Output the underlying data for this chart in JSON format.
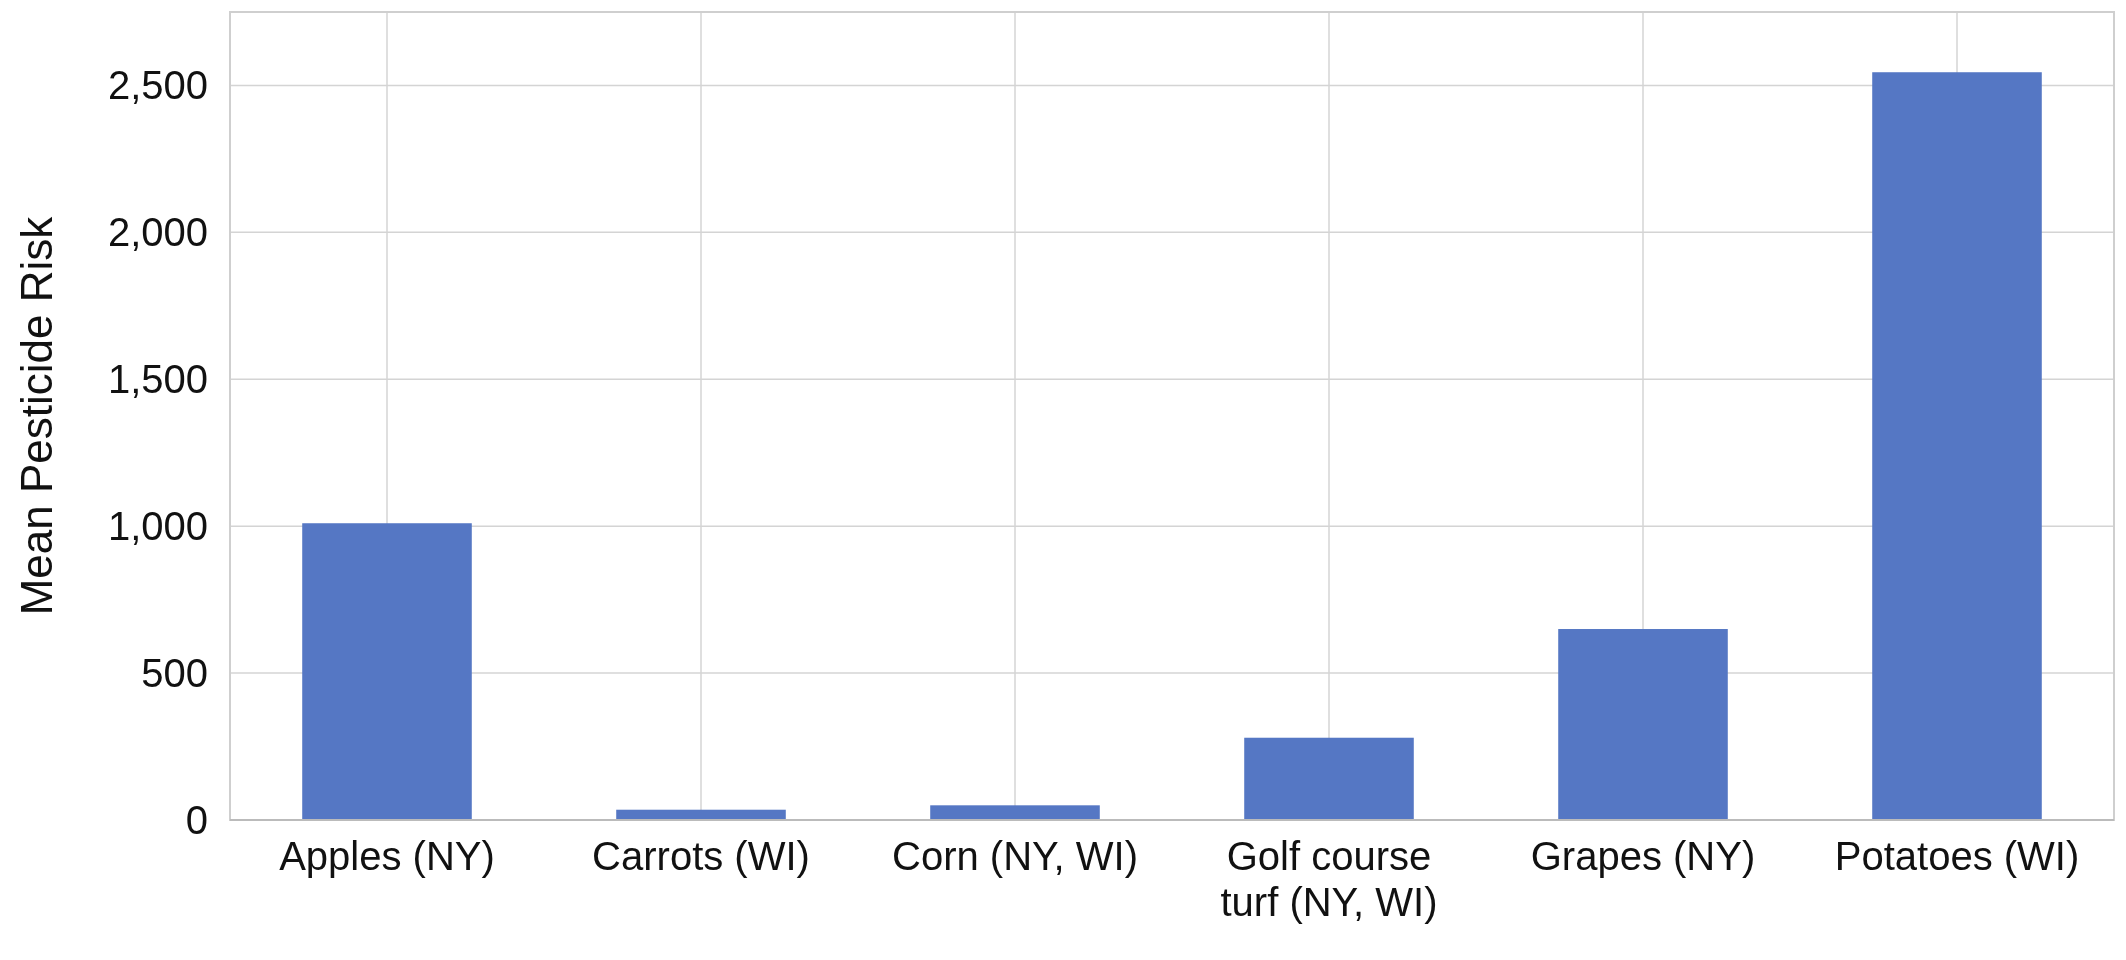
{
  "chart_data": {
    "type": "bar",
    "ylabel": "Mean Pesticide Risk",
    "categories": [
      "Apples (NY)",
      "Carrots (WI)",
      "Corn (NY, WI)",
      "Golf course turf (NY, WI)",
      "Grapes (NY)",
      "Potatoes (WI)"
    ],
    "values": [
      1010,
      35,
      50,
      280,
      650,
      2545
    ],
    "color": "#5577c4",
    "ylim": [
      0,
      2750
    ],
    "yticks": [
      0,
      {
        "value": 500,
        "label": "500"
      },
      {
        "value": 1000,
        "label": "1,000"
      },
      {
        "value": 1500,
        "label": "1,500"
      },
      {
        "value": 2000,
        "label": "2,000"
      },
      {
        "value": 2500,
        "label": "2,500"
      }
    ],
    "grid": true
  }
}
